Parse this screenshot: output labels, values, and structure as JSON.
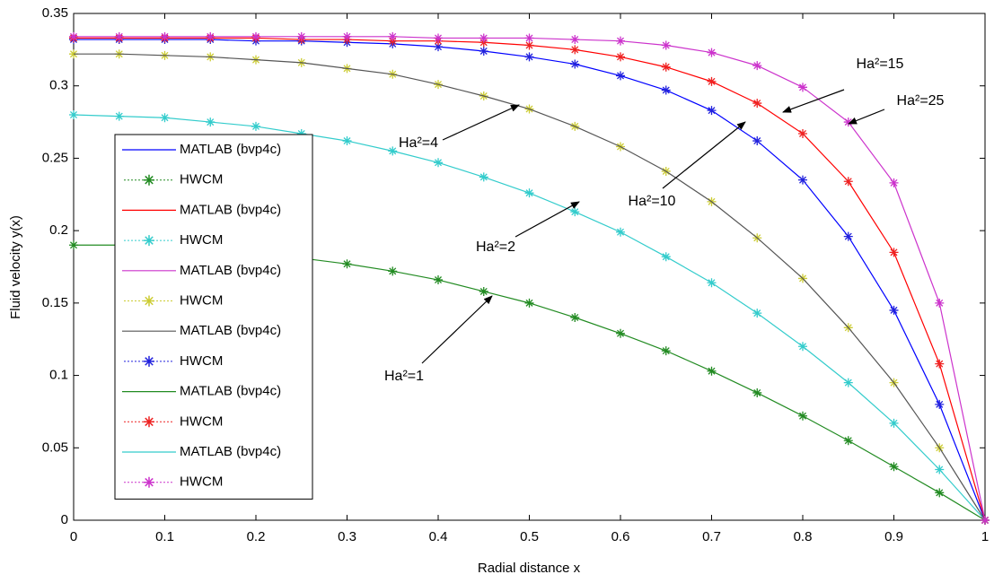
{
  "chart_data": {
    "type": "line",
    "xlabel": "Radial distance x",
    "ylabel": "Fluid velocity y(x)",
    "x": [
      0,
      0.05,
      0.1,
      0.15,
      0.2,
      0.25,
      0.3,
      0.35,
      0.4,
      0.45,
      0.5,
      0.55,
      0.6,
      0.65,
      0.7,
      0.75,
      0.8,
      0.85,
      0.9,
      0.95,
      1
    ],
    "xlim": [
      0,
      1
    ],
    "xticks": [
      0,
      0.1,
      0.2,
      0.3,
      0.4,
      0.5,
      0.6,
      0.7,
      0.8,
      0.9,
      1
    ],
    "ylim": [
      0,
      0.35
    ],
    "yticks": [
      0,
      0.05,
      0.1,
      0.15,
      0.2,
      0.25,
      0.3,
      0.35
    ],
    "legend": "left",
    "series": [
      {
        "name": "MATLAB (bvp4c)",
        "color": "#0000ff",
        "style": "line",
        "values": [
          0.332,
          0.332,
          0.332,
          0.332,
          0.331,
          0.331,
          0.33,
          0.329,
          0.327,
          0.324,
          0.32,
          0.315,
          0.307,
          0.297,
          0.283,
          0.262,
          0.235,
          0.196,
          0.145,
          0.08,
          0
        ]
      },
      {
        "name": "HWCM",
        "color": "#228b22",
        "style": "marker",
        "values": [
          0.19,
          0.19,
          0.189,
          0.187,
          0.184,
          0.181,
          0.177,
          0.172,
          0.166,
          0.158,
          0.15,
          0.14,
          0.129,
          0.117,
          0.103,
          0.088,
          0.072,
          0.055,
          0.037,
          0.019,
          0
        ]
      },
      {
        "name": "MATLAB (bvp4c)",
        "color": "#ff0000",
        "style": "line",
        "values": [
          0.333,
          0.333,
          0.333,
          0.333,
          0.333,
          0.332,
          0.332,
          0.331,
          0.331,
          0.33,
          0.328,
          0.325,
          0.32,
          0.313,
          0.303,
          0.288,
          0.267,
          0.234,
          0.185,
          0.108,
          0
        ]
      },
      {
        "name": "HWCM",
        "color": "#33cccc",
        "style": "marker",
        "values": [
          0.28,
          0.279,
          0.278,
          0.275,
          0.272,
          0.267,
          0.262,
          0.255,
          0.247,
          0.237,
          0.226,
          0.213,
          0.199,
          0.182,
          0.164,
          0.143,
          0.12,
          0.095,
          0.067,
          0.035,
          0
        ]
      },
      {
        "name": "MATLAB (bvp4c)",
        "color": "#cc33cc",
        "style": "line",
        "values": [
          0.334,
          0.334,
          0.334,
          0.334,
          0.334,
          0.334,
          0.334,
          0.334,
          0.333,
          0.333,
          0.333,
          0.332,
          0.331,
          0.328,
          0.323,
          0.314,
          0.299,
          0.275,
          0.233,
          0.15,
          0
        ]
      },
      {
        "name": "HWCM",
        "color": "#cccc33",
        "style": "marker",
        "values": [
          0.322,
          0.322,
          0.321,
          0.32,
          0.318,
          0.316,
          0.312,
          0.308,
          0.301,
          0.293,
          0.284,
          0.272,
          0.258,
          0.241,
          0.22,
          0.195,
          0.167,
          0.133,
          0.095,
          0.05,
          0
        ]
      },
      {
        "name": "MATLAB (bvp4c)",
        "color": "#555555",
        "style": "line",
        "values": [
          0.322,
          0.322,
          0.321,
          0.32,
          0.318,
          0.316,
          0.312,
          0.308,
          0.301,
          0.293,
          0.284,
          0.272,
          0.258,
          0.241,
          0.22,
          0.195,
          0.167,
          0.133,
          0.095,
          0.05,
          0
        ]
      },
      {
        "name": "HWCM",
        "color": "#2222dd",
        "style": "marker",
        "values": [
          0.332,
          0.332,
          0.332,
          0.332,
          0.331,
          0.331,
          0.33,
          0.329,
          0.327,
          0.324,
          0.32,
          0.315,
          0.307,
          0.297,
          0.283,
          0.262,
          0.235,
          0.196,
          0.145,
          0.08,
          0
        ]
      },
      {
        "name": "MATLAB (bvp4c)",
        "color": "#228b22",
        "style": "line",
        "values": [
          0.19,
          0.19,
          0.189,
          0.187,
          0.184,
          0.181,
          0.177,
          0.172,
          0.166,
          0.158,
          0.15,
          0.14,
          0.129,
          0.117,
          0.103,
          0.088,
          0.072,
          0.055,
          0.037,
          0.019,
          0
        ]
      },
      {
        "name": "HWCM",
        "color": "#ee2222",
        "style": "marker",
        "values": [
          0.333,
          0.333,
          0.333,
          0.333,
          0.333,
          0.332,
          0.332,
          0.331,
          0.331,
          0.33,
          0.328,
          0.325,
          0.32,
          0.313,
          0.303,
          0.288,
          0.267,
          0.234,
          0.185,
          0.108,
          0
        ]
      },
      {
        "name": "MATLAB (bvp4c)",
        "color": "#33cccc",
        "style": "line",
        "values": [
          0.28,
          0.279,
          0.278,
          0.275,
          0.272,
          0.267,
          0.262,
          0.255,
          0.247,
          0.237,
          0.226,
          0.213,
          0.199,
          0.182,
          0.164,
          0.143,
          0.12,
          0.095,
          0.067,
          0.035,
          0
        ]
      },
      {
        "name": "HWCM",
        "color": "#cc33cc",
        "style": "marker",
        "values": [
          0.334,
          0.334,
          0.334,
          0.334,
          0.334,
          0.334,
          0.334,
          0.334,
          0.333,
          0.333,
          0.333,
          0.332,
          0.331,
          0.328,
          0.323,
          0.314,
          0.299,
          0.275,
          0.233,
          0.15,
          0
        ]
      }
    ],
    "annotations": [
      "Ha²=15",
      "Ha²=25",
      "Ha²=4",
      "Ha²=10",
      "Ha²=2",
      "Ha²=1"
    ]
  }
}
